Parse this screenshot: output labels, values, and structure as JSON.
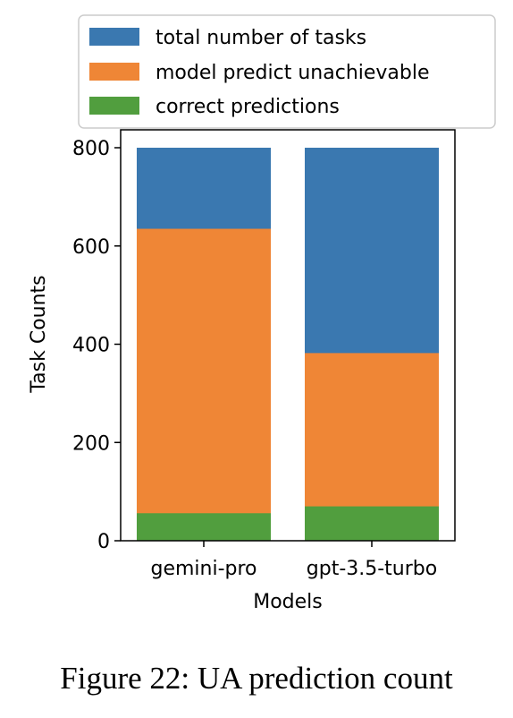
{
  "figure_caption": "Figure 22: UA prediction count",
  "chart_data": {
    "type": "bar",
    "stacked": "overlay",
    "categories": [
      "gemini-pro",
      "gpt-3.5-turbo"
    ],
    "series": [
      {
        "name": "total number of tasks",
        "values": [
          800,
          800
        ],
        "color": "#3a78b0"
      },
      {
        "name": "model predict unachievable",
        "values": [
          635,
          382
        ],
        "color": "#ef8636"
      },
      {
        "name": "correct predictions",
        "values": [
          56,
          70
        ],
        "color": "#519e3e"
      }
    ],
    "title": "",
    "xlabel": "Models",
    "ylabel": "Task Counts",
    "ylim": [
      0,
      800
    ],
    "yticks": [
      0,
      200,
      400,
      600,
      800
    ],
    "grid": false,
    "legend_position": "top"
  }
}
